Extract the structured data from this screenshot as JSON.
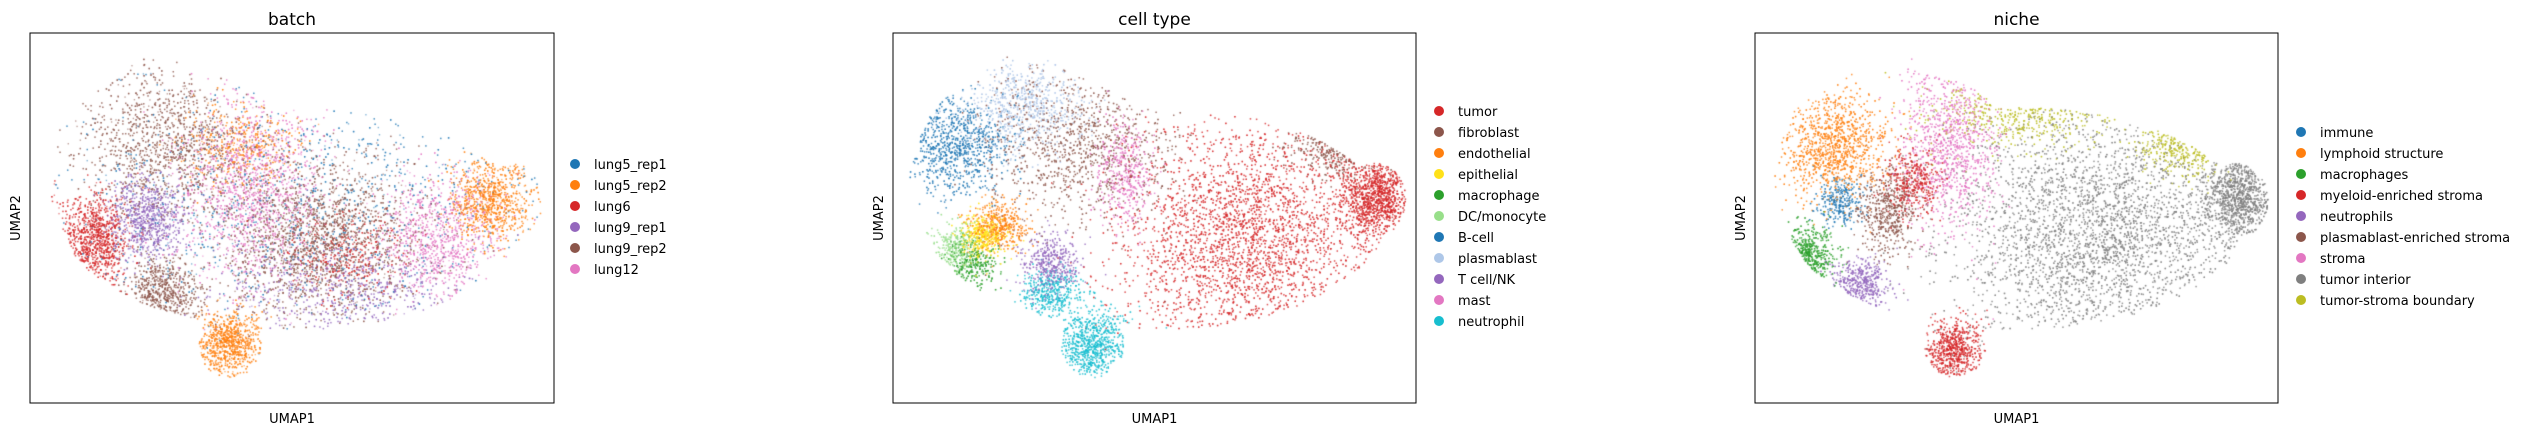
{
  "chart_data": [
    {
      "type": "scatter",
      "title": "batch",
      "xlabel": "UMAP1",
      "ylabel": "UMAP2",
      "grid": false,
      "legend_position": "right",
      "series": [
        {
          "name": "lung5_rep1",
          "color": "#1f77b4"
        },
        {
          "name": "lung5_rep2",
          "color": "#ff7f0e"
        },
        {
          "name": "lung6",
          "color": "#d62728"
        },
        {
          "name": "lung9_rep1",
          "color": "#9467bd"
        },
        {
          "name": "lung9_rep2",
          "color": "#8c564b"
        },
        {
          "name": "lung12",
          "color": "#e377c2"
        }
      ]
    },
    {
      "type": "scatter",
      "title": "cell type",
      "xlabel": "UMAP1",
      "ylabel": "UMAP2",
      "grid": false,
      "legend_position": "right",
      "series": [
        {
          "name": "tumor",
          "color": "#d62728"
        },
        {
          "name": "fibroblast",
          "color": "#8c564b"
        },
        {
          "name": "endothelial",
          "color": "#ff7f0e"
        },
        {
          "name": "epithelial",
          "color": "#ffe119"
        },
        {
          "name": "macrophage",
          "color": "#2ca02c"
        },
        {
          "name": "DC/monocyte",
          "color": "#98df8a"
        },
        {
          "name": "B-cell",
          "color": "#1f77b4"
        },
        {
          "name": "plasmablast",
          "color": "#aec7e8"
        },
        {
          "name": "T cell/NK",
          "color": "#9467bd"
        },
        {
          "name": "mast",
          "color": "#e377c2"
        },
        {
          "name": "neutrophil",
          "color": "#17becf"
        }
      ]
    },
    {
      "type": "scatter",
      "title": "niche",
      "xlabel": "UMAP1",
      "ylabel": "UMAP2",
      "grid": false,
      "legend_position": "right",
      "series": [
        {
          "name": "immune",
          "color": "#1f77b4"
        },
        {
          "name": "lymphoid structure",
          "color": "#ff7f0e"
        },
        {
          "name": "macrophages",
          "color": "#2ca02c"
        },
        {
          "name": "myeloid-enriched stroma",
          "color": "#d62728"
        },
        {
          "name": "neutrophils",
          "color": "#9467bd"
        },
        {
          "name": "plasmablast-enriched stroma",
          "color": "#8c564b"
        },
        {
          "name": "stroma",
          "color": "#e377c2"
        },
        {
          "name": "tumor interior",
          "color": "#7f7f7f"
        },
        {
          "name": "tumor-stroma boundary",
          "color": "#bcbd22"
        }
      ]
    }
  ]
}
